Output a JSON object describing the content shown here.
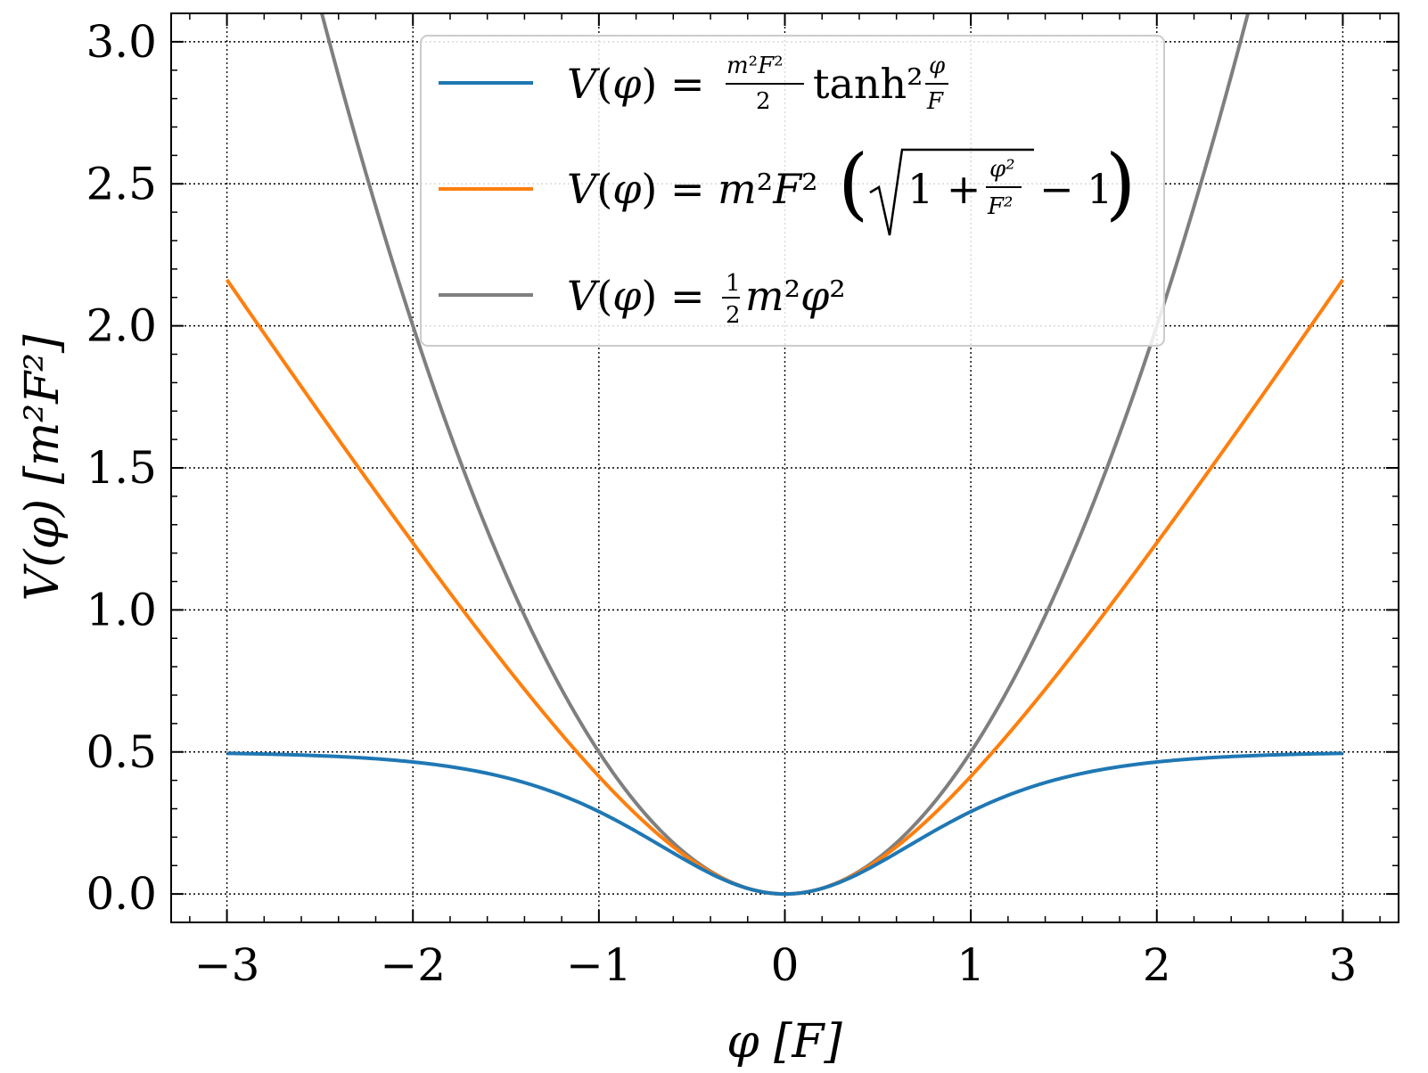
{
  "chart_data": {
    "type": "line",
    "xlabel": "φ [F]",
    "ylabel": "V(φ) [m²F²]",
    "xlim": [
      -3.3,
      3.3
    ],
    "ylim": [
      -0.1,
      3.1
    ],
    "x_ticks": [
      -3,
      -2,
      -1,
      0,
      1,
      2,
      3
    ],
    "y_ticks": [
      0.0,
      0.5,
      1.0,
      1.5,
      2.0,
      2.5,
      3.0
    ],
    "x_tick_labels": [
      "−3",
      "−2",
      "−1",
      "0",
      "1",
      "2",
      "3"
    ],
    "y_tick_labels": [
      "0.0",
      "0.5",
      "1.0",
      "1.5",
      "2.0",
      "2.5",
      "3.0"
    ],
    "grid": true,
    "legend_position": "top-center",
    "series": [
      {
        "name": "V(φ) = (m²F²/2) tanh² (φ/F)",
        "color": "#1f77b4",
        "function": "tanh2",
        "x": [
          -3,
          -2.5,
          -2,
          -1.5,
          -1,
          -0.5,
          0,
          0.5,
          1,
          1.5,
          2,
          2.5,
          3
        ],
        "y": [
          0.495,
          0.486,
          0.465,
          0.408,
          0.29,
          0.107,
          0.0,
          0.107,
          0.29,
          0.408,
          0.465,
          0.486,
          0.495
        ]
      },
      {
        "name": "V(φ) = m²F² (√(1 + φ²/F²) − 1)",
        "color": "#ff7f0e",
        "function": "sqrt",
        "x": [
          -3,
          -2.5,
          -2,
          -1.5,
          -1,
          -0.5,
          0,
          0.5,
          1,
          1.5,
          2,
          2.5,
          3
        ],
        "y": [
          2.162,
          1.693,
          1.236,
          0.803,
          0.414,
          0.118,
          0.0,
          0.118,
          0.414,
          0.803,
          1.236,
          1.693,
          2.162
        ]
      },
      {
        "name": "V(φ) = ½ m² φ²",
        "color": "#7f7f7f",
        "function": "quadratic",
        "x": [
          -2.49,
          -2.0,
          -1.5,
          -1,
          -0.5,
          0,
          0.5,
          1,
          1.5,
          2.0,
          2.49
        ],
        "y": [
          3.1,
          2.0,
          1.125,
          0.5,
          0.125,
          0.0,
          0.125,
          0.5,
          1.125,
          2.0,
          3.1
        ]
      }
    ]
  }
}
